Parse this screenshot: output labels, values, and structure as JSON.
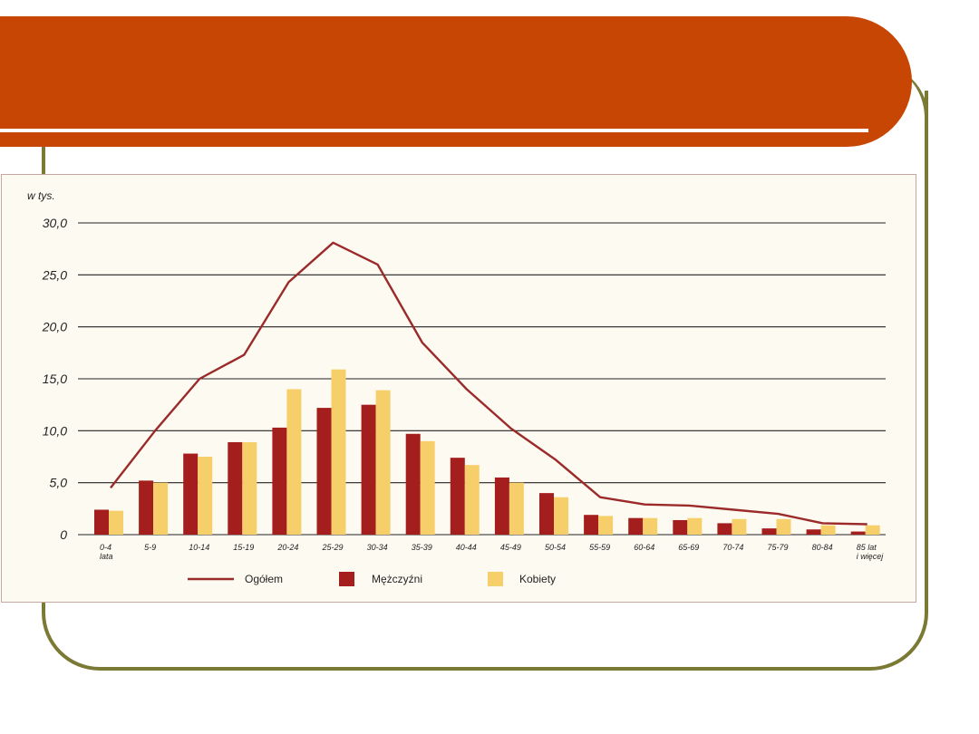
{
  "colors": {
    "title_bar": "#c84604",
    "frame": "#7b7a35",
    "panel_bg": "#fdfbf1",
    "line": "#9b2a2a",
    "men": "#a51e1e",
    "women": "#f7cf6a",
    "grid": "#222222"
  },
  "chart_data": {
    "type": "bar",
    "ylabel": "w tys.",
    "ylim": [
      0,
      30
    ],
    "yticks": [
      "30,0",
      "25,0",
      "20,0",
      "15,0",
      "10,0",
      "5,0",
      "0"
    ],
    "categories": [
      [
        "0-4",
        "lata"
      ],
      [
        "5-9"
      ],
      [
        "10-14"
      ],
      [
        "15-19"
      ],
      [
        "20-24"
      ],
      [
        "25-29"
      ],
      [
        "30-34"
      ],
      [
        "35-39"
      ],
      [
        "40-44"
      ],
      [
        "45-49"
      ],
      [
        "50-54"
      ],
      [
        "55-59"
      ],
      [
        "60-64"
      ],
      [
        "65-69"
      ],
      [
        "70-74"
      ],
      [
        "75-79"
      ],
      [
        "80-84"
      ],
      [
        "85 lat",
        "i więcej"
      ]
    ],
    "series": [
      {
        "name": "Ogółem",
        "type": "line",
        "values": [
          4.5,
          10.0,
          15.0,
          17.3,
          24.3,
          28.1,
          26.0,
          18.5,
          14.0,
          10.2,
          7.2,
          3.6,
          2.9,
          2.8,
          2.4,
          2.0,
          1.1,
          1.0
        ]
      },
      {
        "name": "Mężczyźni",
        "type": "bar",
        "values": [
          2.4,
          5.2,
          7.8,
          8.9,
          10.3,
          12.2,
          12.5,
          9.7,
          7.4,
          5.5,
          4.0,
          1.9,
          1.6,
          1.4,
          1.1,
          0.6,
          0.5,
          0.3
        ]
      },
      {
        "name": "Kobiety",
        "type": "bar",
        "values": [
          2.3,
          5.0,
          7.5,
          8.9,
          14.0,
          15.9,
          13.9,
          9.0,
          6.7,
          5.0,
          3.6,
          1.8,
          1.6,
          1.6,
          1.5,
          1.5,
          0.9,
          0.9
        ]
      }
    ],
    "legend_position": "bottom",
    "grid": true
  }
}
